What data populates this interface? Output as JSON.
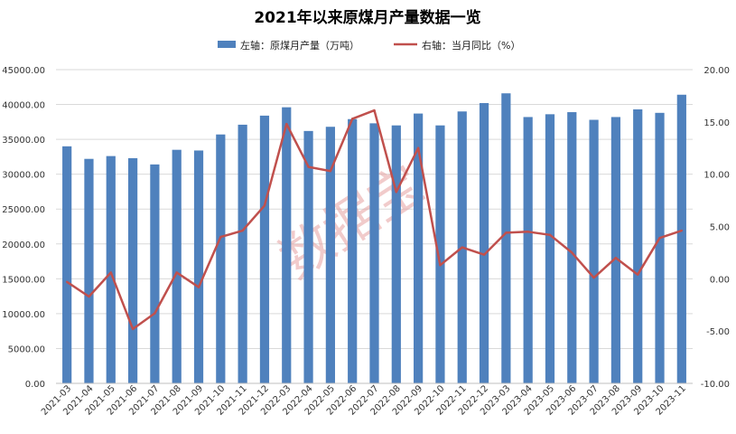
{
  "chart_data": {
    "type": "bar",
    "title": "2021年以来原煤月产量数据一览",
    "legend": {
      "placement": "top-center"
    },
    "watermark": "数据宝",
    "colors": {
      "bar": "#4f81bd",
      "line": "#c0504d",
      "grid": "#d9d9d9",
      "watermark": "#e6a0a0"
    },
    "categories": [
      "2021-03",
      "2021-04",
      "2021-05",
      "2021-06",
      "2021-07",
      "2021-08",
      "2021-09",
      "2021-10",
      "2021-11",
      "2021-12",
      "2022-03",
      "2022-04",
      "2022-05",
      "2022-06",
      "2022-07",
      "2022-08",
      "2022-09",
      "2022-10",
      "2022-11",
      "2022-12",
      "2023-03",
      "2023-04",
      "2023-05",
      "2023-06",
      "2023-07",
      "2023-08",
      "2023-09",
      "2023-10",
      "2023-11"
    ],
    "series": [
      {
        "name": "左轴：原煤月产量（万吨）",
        "axis": "left",
        "type": "bar",
        "values": [
          34000,
          32200,
          32600,
          32300,
          31400,
          33500,
          33400,
          35700,
          37100,
          38400,
          39600,
          36200,
          36800,
          37900,
          37300,
          37000,
          38700,
          37000,
          39000,
          40200,
          41600,
          38200,
          38600,
          38900,
          37800,
          38200,
          39300,
          38800,
          41400
        ]
      },
      {
        "name": "右轴：当月同比（%）",
        "axis": "right",
        "type": "line",
        "values": [
          -0.3,
          -1.7,
          0.6,
          -4.8,
          -3.3,
          0.6,
          -0.8,
          4.0,
          4.6,
          7.0,
          14.8,
          10.7,
          10.3,
          15.3,
          16.1,
          8.3,
          12.5,
          1.3,
          3.0,
          2.3,
          4.4,
          4.5,
          4.2,
          2.5,
          0.1,
          2.0,
          0.4,
          3.9,
          4.6
        ]
      }
    ],
    "y_left": {
      "min": 0,
      "max": 45000,
      "step": 5000,
      "ticks": [
        "0.00",
        "5000.00",
        "10000.00",
        "15000.00",
        "20000.00",
        "25000.00",
        "30000.00",
        "35000.00",
        "40000.00",
        "45000.00"
      ]
    },
    "y_right": {
      "min": -10,
      "max": 20,
      "step": 5,
      "ticks": [
        "-10.00",
        "-5.00",
        "0.00",
        "5.00",
        "10.00",
        "15.00",
        "20.00"
      ]
    },
    "grid": true
  }
}
